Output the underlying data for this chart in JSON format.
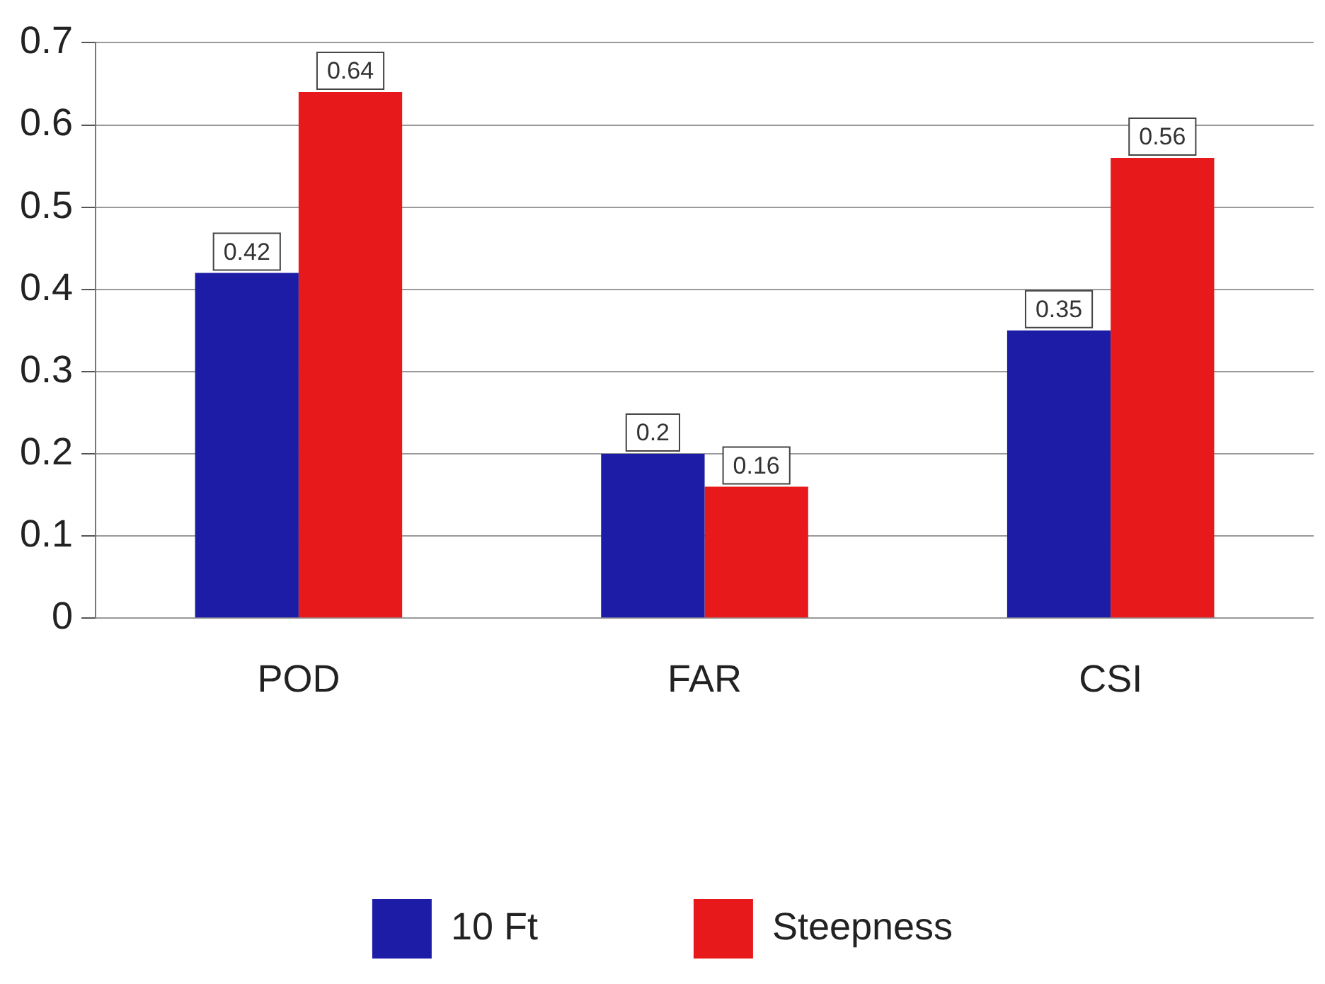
{
  "chart_data": {
    "type": "bar",
    "categories": [
      "POD",
      "FAR",
      "CSI"
    ],
    "series": [
      {
        "name": "10 Ft",
        "color": "#1c1ca6",
        "values": [
          0.42,
          0.2,
          0.35
        ]
      },
      {
        "name": "Steepness",
        "color": "#e8191b",
        "values": [
          0.64,
          0.16,
          0.56
        ]
      }
    ],
    "ylim": [
      0,
      0.7
    ],
    "yticks": [
      0,
      0.1,
      0.2,
      0.3,
      0.4,
      0.5,
      0.6,
      0.7
    ],
    "grid": "y",
    "legend": "bottom",
    "data_labels": true
  }
}
